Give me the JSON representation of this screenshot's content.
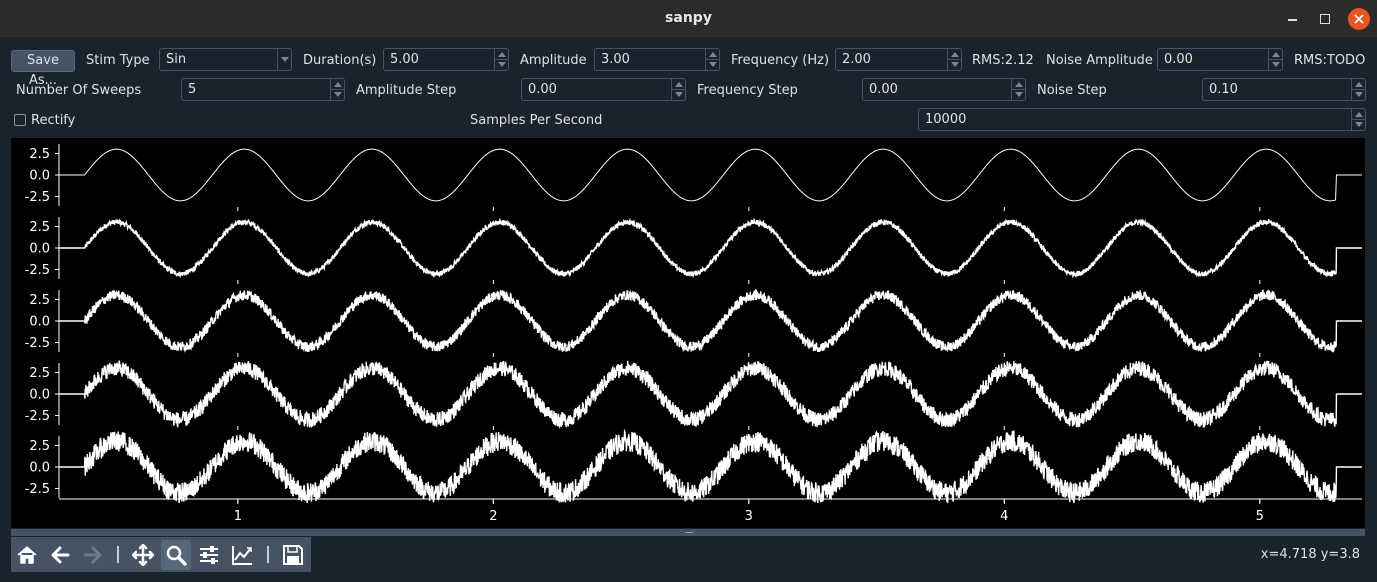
{
  "window": {
    "title": "sanpy"
  },
  "controls": {
    "save_as": "Save As...",
    "stim_type_label": "Stim Type",
    "stim_type_value": "Sin",
    "duration_label": "Duration(s)",
    "duration_value": "5.00",
    "amplitude_label": "Amplitude",
    "amplitude_value": "3.00",
    "frequency_label": "Frequency (Hz)",
    "frequency_value": "2.00",
    "rms": "RMS:2.12",
    "noise_amplitude_label": "Noise Amplitude",
    "noise_amplitude_value": "0.00",
    "noise_rms": "RMS:TODO",
    "num_sweeps_label": "Number Of Sweeps",
    "num_sweeps_value": "5",
    "amplitude_step_label": "Amplitude Step",
    "amplitude_step_value": "0.00",
    "frequency_step_label": "Frequency Step",
    "frequency_step_value": "0.00",
    "noise_step_label": "Noise Step",
    "noise_step_value": "0.10",
    "rectify_label": "Rectify",
    "rectify_checked": false,
    "samples_per_second_label": "Samples Per Second",
    "samples_per_second_value": "10000"
  },
  "chart_data": {
    "type": "line",
    "title": "",
    "xlabel": "",
    "ylabel": "",
    "x_ticks": [
      "1",
      "2",
      "3",
      "4",
      "5"
    ],
    "xlim": [
      0.3,
      5.4
    ],
    "ylim": [
      -3.6,
      3.6
    ],
    "y_ticks": [
      "2.5",
      "0.0",
      "-2.5"
    ],
    "grid": false,
    "signal": {
      "start_s": 0.4,
      "end_s": 5.3,
      "frequency_hz": 2.0,
      "amplitude": 3.0
    },
    "series": [
      {
        "sweep": 1,
        "noise_amplitude": 0.0
      },
      {
        "sweep": 2,
        "noise_amplitude": 0.1
      },
      {
        "sweep": 3,
        "noise_amplitude": 0.2
      },
      {
        "sweep": 4,
        "noise_amplitude": 0.3
      },
      {
        "sweep": 5,
        "noise_amplitude": 0.4
      }
    ],
    "line_color": "#ffffff",
    "background": "#000000"
  },
  "toolbar": {
    "icons": [
      "home-icon",
      "back-arrow-icon",
      "forward-arrow-icon",
      "pan-icon",
      "zoom-icon",
      "configure-subplots-icon",
      "edit-axis-icon",
      "save-icon"
    ],
    "active": "zoom-icon"
  },
  "status": {
    "coords": "x=4.718 y=3.8"
  }
}
